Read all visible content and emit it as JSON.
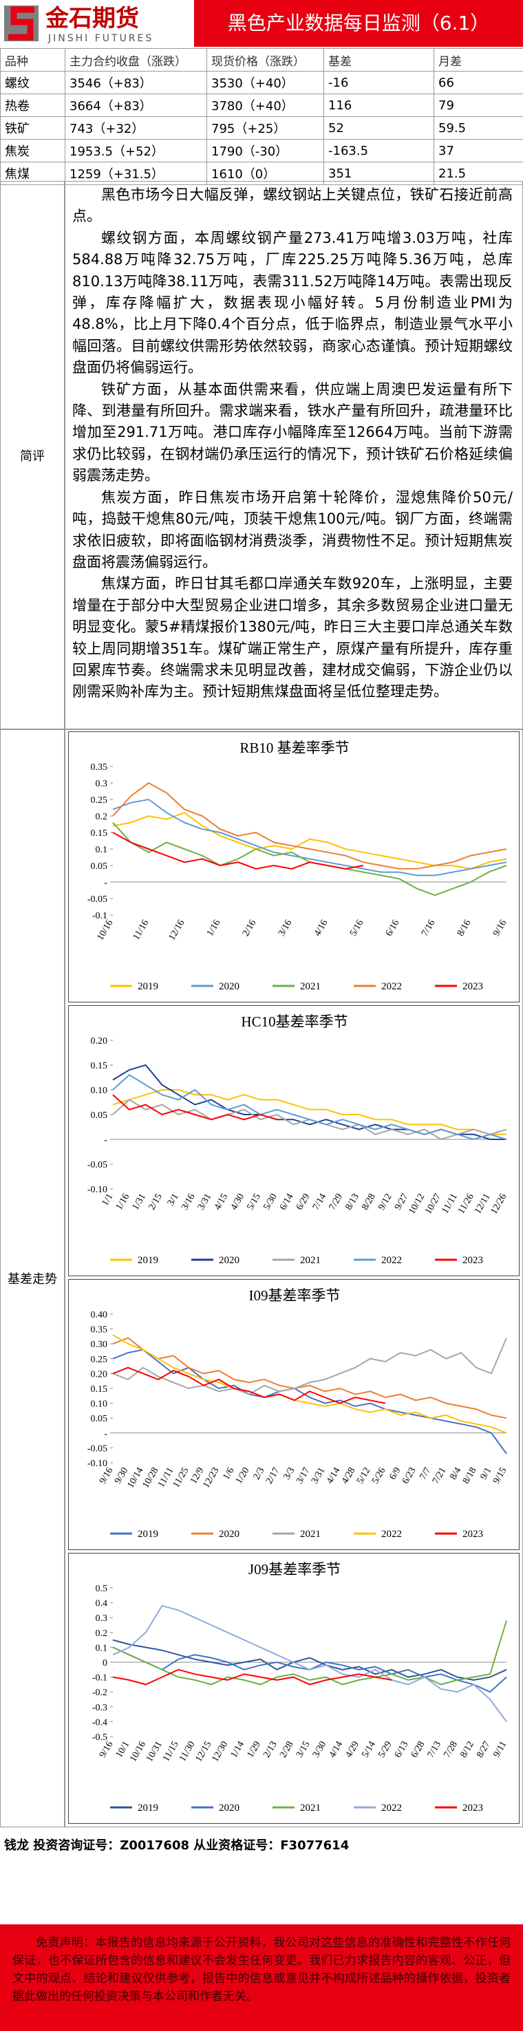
{
  "header": {
    "logo": "金石期货",
    "logo_en": "JINSHI FUTURES",
    "title": "黑色产业数据每日监测（6.1）"
  },
  "table": {
    "columns": [
      "品种",
      "主力合约收盘（涨跌）",
      "现货价格（涨跌）",
      "基差",
      "月差"
    ],
    "rows": [
      [
        "螺纹",
        "3546（+83）",
        "3530（+40）",
        "-16",
        "66"
      ],
      [
        "热卷",
        "3664（+83）",
        "3780（+40）",
        "116",
        "79"
      ],
      [
        "铁矿",
        "743（+32）",
        "795（+25）",
        "52",
        "59.5"
      ],
      [
        "焦炭",
        "1953.5（+52）",
        "1790（-30）",
        "-163.5",
        "37"
      ],
      [
        "焦煤",
        "1259（+31.5）",
        "1610（0）",
        "351",
        "21.5"
      ]
    ]
  },
  "comment": {
    "label": "简评",
    "paragraphs": [
      "黑色市场今日大幅反弹，螺纹钢站上关键点位，铁矿石接近前高点。",
      "螺纹钢方面，本周螺纹钢产量273.41万吨增3.03万吨，社库584.88万吨降32.75万吨，厂库225.25万吨降5.36万吨，总库810.13万吨降38.11万吨，表需311.52万吨降14万吨。表需出现反弹，库存降幅扩大，数据表现小幅好转。5月份制造业PMI为48.8%，比上月下降0.4个百分点，低于临界点，制造业景气水平小幅回落。目前螺纹供需形势依然较弱，商家心态谨慎。预计短期螺纹盘面仍将偏弱运行。",
      "铁矿方面，从基本面供需来看，供应端上周澳巴发运量有所下降、到港量有所回升。需求端来看，铁水产量有所回升，疏港量环比增加至291.71万吨。港口库存小幅降库至12664万吨。当前下游需求仍比较弱，在钢材端仍承压运行的情况下，预计铁矿石价格延续偏弱震荡走势。",
      "焦炭方面，昨日焦炭市场开启第十轮降价，湿熄焦降价50元/吨，捣鼓干熄焦80元/吨，顶装干熄焦100元/吨。钢厂方面，终端需求依旧疲软，即将面临钢材消费淡季，消费物性不足。预计短期焦炭盘面将震荡偏弱运行。",
      "焦煤方面，昨日甘其毛都口岸通关车数920车，上涨明显，主要增量在于部分中大型贸易企业进口增多，其余多数贸易企业进口量无明显变化。蒙5#精煤报价1380元/吨，昨日三大主要口岸总通关车数较上周同期增351车。煤矿端正常生产，原煤产量有所提升，库存重回累库节奏。终端需求未见明显改善，建材成交偏弱，下游企业仍以刚需采购补库为主。预计短期焦煤盘面将呈低位整理走势。"
    ]
  },
  "basis": {
    "label": "基差走势"
  },
  "chart_data": [
    {
      "type": "line",
      "title": "RB10 基差率季节",
      "categories": [
        "10/16",
        null,
        "11/16",
        null,
        "12/16",
        null,
        "1/16",
        null,
        "2/16",
        null,
        "3/16",
        null,
        "4/16",
        null,
        "5/16",
        null,
        "6/16",
        null,
        "7/16",
        null,
        "8/16",
        null,
        "9/16"
      ],
      "ylim": [
        -0.1,
        0.35
      ],
      "yticks": [
        0.35,
        0.3,
        0.25,
        0.2,
        0.15,
        0.1,
        0.05,
        {
          "value": 0,
          "label": "-"
        },
        -0.05,
        -0.1
      ],
      "series": [
        {
          "name": "2019",
          "color": "#ffc000",
          "values": [
            0.17,
            0.18,
            0.2,
            0.19,
            0.21,
            0.17,
            0.14,
            0.12,
            0.1,
            0.11,
            0.1,
            0.13,
            0.12,
            0.1,
            0.09,
            0.08,
            0.07,
            0.06,
            0.05,
            0.05,
            0.04,
            0.06,
            0.07
          ]
        },
        {
          "name": "2020",
          "color": "#5b9bd5",
          "values": [
            0.22,
            0.24,
            0.25,
            0.21,
            0.18,
            0.16,
            0.15,
            0.13,
            0.11,
            0.09,
            0.08,
            0.07,
            0.06,
            0.05,
            0.04,
            0.03,
            0.03,
            0.02,
            0.02,
            0.03,
            0.04,
            0.05,
            0.06
          ]
        },
        {
          "name": "2021",
          "color": "#70ad47",
          "values": [
            0.18,
            0.12,
            0.09,
            0.12,
            0.1,
            0.08,
            0.05,
            0.07,
            0.1,
            0.08,
            0.09,
            0.06,
            0.05,
            0.04,
            0.03,
            0.02,
            0.01,
            -0.02,
            -0.04,
            -0.02,
            0,
            0.03,
            0.05
          ]
        },
        {
          "name": "2022",
          "color": "#ed7d31",
          "values": [
            0.2,
            0.26,
            0.3,
            0.27,
            0.22,
            0.2,
            0.16,
            0.14,
            0.15,
            0.12,
            0.11,
            0.1,
            0.09,
            0.08,
            0.06,
            0.05,
            0.04,
            0.04,
            0.05,
            0.06,
            0.08,
            0.09,
            0.1
          ]
        },
        {
          "name": "2023",
          "color": "#ff0000",
          "values": [
            0.15,
            0.12,
            0.1,
            0.08,
            0.06,
            0.07,
            0.05,
            0.06,
            0.04,
            0.05,
            0.04,
            0.06,
            0.05,
            0.04,
            0.05,
            null,
            null,
            null,
            null,
            null,
            null,
            null,
            null
          ]
        }
      ]
    },
    {
      "type": "line",
      "title": "HC10基差率季节",
      "categories": [
        "1/1",
        "1/16",
        "1/31",
        "2/15",
        "3/1",
        "3/16",
        "3/31",
        "4/15",
        "4/30",
        "5/15",
        "5/30",
        "6/14",
        "6/29",
        "7/14",
        "7/29",
        "8/13",
        "8/28",
        "9/12",
        "9/27",
        "10/12",
        "10/27",
        "11/11",
        "11/26",
        "12/11",
        "12/26"
      ],
      "ylim": [
        -0.1,
        0.2
      ],
      "yticks": [
        {
          "value": 0.2,
          "label": "0.20"
        },
        0.15,
        {
          "value": 0.1,
          "label": "0.10"
        },
        0.05,
        {
          "value": 0,
          "label": "-"
        },
        -0.05,
        {
          "value": -0.1,
          "label": "-0.10"
        }
      ],
      "series": [
        {
          "name": "2019",
          "color": "#ffc000",
          "values": [
            0.07,
            0.08,
            0.09,
            0.1,
            0.1,
            0.09,
            0.09,
            0.08,
            0.09,
            0.08,
            0.08,
            0.07,
            0.06,
            0.06,
            0.05,
            0.05,
            0.04,
            0.04,
            0.03,
            0.03,
            0.03,
            0.02,
            0.02,
            0.01,
            0.01
          ]
        },
        {
          "name": "2020",
          "color": "#1f3f99",
          "values": [
            0.12,
            0.14,
            0.15,
            0.11,
            0.09,
            0.07,
            0.08,
            0.06,
            0.05,
            0.05,
            0.04,
            0.04,
            0.03,
            0.04,
            0.03,
            0.02,
            0.03,
            0.02,
            0.02,
            0.01,
            0.02,
            0.01,
            0.01,
            0,
            0
          ]
        },
        {
          "name": "2021",
          "color": "#a5a5a5",
          "values": [
            0.05,
            0.08,
            0.06,
            0.07,
            0.05,
            0.06,
            0.04,
            0.05,
            0.06,
            0.04,
            0.05,
            0.03,
            0.04,
            0.03,
            0.02,
            0.03,
            0.01,
            0.02,
            0.01,
            0.02,
            0,
            0.01,
            0.02,
            0.01,
            0.02
          ]
        },
        {
          "name": "2022",
          "color": "#5b9bd5",
          "values": [
            0.1,
            0.13,
            0.11,
            0.09,
            0.08,
            0.1,
            0.07,
            0.06,
            0.07,
            0.05,
            0.06,
            0.05,
            0.04,
            0.03,
            0.04,
            0.03,
            0.02,
            0.03,
            0.02,
            0.01,
            0.02,
            0.01,
            0,
            0.01,
            0
          ]
        },
        {
          "name": "2023",
          "color": "#ff0000",
          "values": [
            0.09,
            0.06,
            0.07,
            0.05,
            0.06,
            0.05,
            0.04,
            0.05,
            0.04,
            0.05,
            0.04,
            null,
            null,
            null,
            null,
            null,
            null,
            null,
            null,
            null,
            null,
            null,
            null,
            null,
            null
          ]
        }
      ]
    },
    {
      "type": "line",
      "title": "I09基差率季节",
      "categories": [
        "9/16",
        "9/30",
        "10/14",
        "10/28",
        "11/11",
        "11/25",
        "12/9",
        "12/23",
        "1/6",
        "1/20",
        "2/3",
        "2/17",
        "3/3",
        "3/17",
        "3/31",
        "4/14",
        "4/28",
        "5/12",
        "5/26",
        "6/9",
        "6/23",
        "7/7",
        "7/21",
        "8/4",
        "8/18",
        "9/1",
        "9/15"
      ],
      "ylim": [
        -0.1,
        0.4
      ],
      "yticks": [
        {
          "value": 0.4,
          "label": "0.40"
        },
        0.35,
        {
          "value": 0.3,
          "label": "0.30"
        },
        0.25,
        {
          "value": 0.2,
          "label": "0.20"
        },
        0.15,
        {
          "value": 0.1,
          "label": "0.10"
        },
        0.05,
        {
          "value": 0,
          "label": "-"
        },
        -0.05,
        {
          "value": -0.1,
          "label": "-0.10"
        }
      ],
      "series": [
        {
          "name": "2019",
          "color": "#4472c4",
          "values": [
            0.25,
            0.27,
            0.28,
            0.24,
            0.2,
            0.22,
            0.18,
            0.15,
            0.16,
            0.13,
            0.12,
            0.14,
            0.15,
            0.12,
            0.1,
            0.11,
            0.09,
            0.1,
            0.08,
            0.07,
            0.06,
            0.05,
            0.04,
            0.03,
            0.02,
            0,
            -0.07
          ]
        },
        {
          "name": "2020",
          "color": "#ed7d31",
          "values": [
            0.3,
            0.32,
            0.28,
            0.25,
            0.26,
            0.22,
            0.2,
            0.21,
            0.18,
            0.17,
            0.18,
            0.16,
            0.15,
            0.16,
            0.14,
            0.15,
            0.13,
            0.14,
            0.12,
            0.13,
            0.11,
            0.12,
            0.1,
            0.09,
            0.08,
            0.06,
            0.05
          ]
        },
        {
          "name": "2021",
          "color": "#a5a5a5",
          "values": [
            0.2,
            0.18,
            0.22,
            0.19,
            0.17,
            0.15,
            0.16,
            0.14,
            0.15,
            0.13,
            0.16,
            0.14,
            0.15,
            0.17,
            0.18,
            0.2,
            0.22,
            0.25,
            0.24,
            0.27,
            0.26,
            0.28,
            0.25,
            0.27,
            0.22,
            0.2,
            0.32
          ]
        },
        {
          "name": "2022",
          "color": "#ffc000",
          "values": [
            0.33,
            0.3,
            0.28,
            0.25,
            0.22,
            0.2,
            0.18,
            0.17,
            0.15,
            0.14,
            0.12,
            0.13,
            0.11,
            0.1,
            0.09,
            0.1,
            0.08,
            0.07,
            0.08,
            0.06,
            0.07,
            0.05,
            0.06,
            0.04,
            0.03,
            0.02,
            0
          ]
        },
        {
          "name": "2023",
          "color": "#ff0000",
          "values": [
            0.2,
            0.22,
            0.2,
            0.18,
            0.21,
            0.19,
            0.16,
            0.18,
            0.15,
            0.14,
            0.12,
            0.13,
            0.11,
            0.14,
            0.12,
            0.1,
            0.12,
            0.11,
            0.1,
            null,
            null,
            null,
            null,
            null,
            null,
            null,
            null
          ]
        }
      ]
    },
    {
      "type": "line",
      "title": "J09基差率季节",
      "categories": [
        "9/16",
        "10/1",
        "10/16",
        "10/31",
        "11/15",
        "11/30",
        "12/15",
        "12/30",
        "1/14",
        "1/29",
        "2/13",
        "2/28",
        "3/15",
        "3/30",
        "4/14",
        "4/29",
        "5/14",
        "5/29",
        "6/13",
        "6/28",
        "7/13",
        "7/28",
        "8/12",
        "8/27",
        "9/11"
      ],
      "ylim": [
        -0.5,
        0.5
      ],
      "yticks": [
        0.5,
        0.4,
        0.3,
        0.2,
        0.1,
        0,
        -0.1,
        -0.2,
        -0.3,
        -0.4,
        -0.5
      ],
      "series": [
        {
          "name": "2019",
          "color": "#2f5597",
          "values": [
            0.15,
            0.12,
            0.1,
            0.08,
            0.05,
            0.02,
            0,
            -0.02,
            0,
            0.02,
            -0.05,
            0,
            0.03,
            -0.02,
            -0.05,
            -0.03,
            -0.08,
            -0.05,
            -0.1,
            -0.08,
            -0.05,
            -0.1,
            -0.12,
            -0.1,
            -0.05
          ]
        },
        {
          "name": "2020",
          "color": "#4472c4",
          "values": [
            0.1,
            0.05,
            0,
            -0.05,
            0.02,
            0.05,
            0.03,
            0,
            -0.05,
            -0.02,
            0,
            -0.03,
            -0.05,
            0,
            -0.02,
            -0.05,
            -0.03,
            -0.08,
            -0.05,
            -0.1,
            -0.08,
            -0.12,
            -0.15,
            -0.2,
            -0.1
          ]
        },
        {
          "name": "2021",
          "color": "#70ad47",
          "values": [
            0.1,
            0.05,
            0,
            -0.05,
            -0.1,
            -0.12,
            -0.15,
            -0.1,
            -0.12,
            -0.15,
            -0.1,
            -0.08,
            -0.12,
            -0.1,
            -0.15,
            -0.12,
            -0.1,
            -0.08,
            -0.12,
            -0.1,
            -0.15,
            -0.12,
            -0.1,
            -0.08,
            0.28
          ]
        },
        {
          "name": "2022",
          "color": "#8faadc",
          "values": [
            0.05,
            0.1,
            0.2,
            0.38,
            0.35,
            0.3,
            0.25,
            0.2,
            0.15,
            0.1,
            0.05,
            0,
            -0.05,
            -0.02,
            -0.08,
            -0.1,
            -0.05,
            -0.12,
            -0.15,
            -0.1,
            -0.18,
            -0.2,
            -0.15,
            -0.25,
            -0.4
          ]
        },
        {
          "name": "2023",
          "color": "#ff0000",
          "values": [
            -0.1,
            -0.12,
            -0.15,
            -0.1,
            -0.05,
            -0.08,
            -0.1,
            -0.12,
            -0.08,
            -0.1,
            -0.12,
            -0.1,
            -0.15,
            -0.12,
            -0.1,
            -0.08,
            -0.1,
            -0.12,
            null,
            null,
            null,
            null,
            null,
            null,
            null
          ]
        }
      ]
    }
  ],
  "signature": "钱龙 投资咨询证号：Z0017608 从业资格证号：F3077614",
  "disclaimer": "免责声明：本报告的信息均来源于公开资料，我公司对这些信息的准确性和完整性不作任何保证，也不保证所包含的信息和建议不会发生任何变更。我们已力求报告内容的客观、公正，但文中的观点、结论和建议仅供参考，报告中的信息或意见并不构成所述品种的操作依据，投资者据此做出的任何投资决策与本公司和作者无关。"
}
